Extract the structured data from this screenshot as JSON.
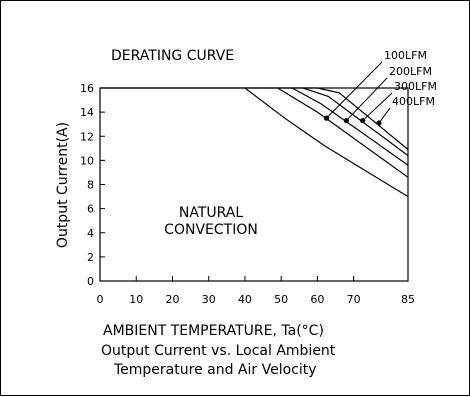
{
  "chart_data": {
    "type": "line",
    "title": "DERATING CURVE",
    "inner_label_lines": [
      "NATURAL",
      "CONVECTION"
    ],
    "xlabel": "AMBIENT TEMPERATURE, Ta(°C)",
    "ylabel": "Output Current(A)",
    "caption_lines": [
      "Output Current vs. Local Ambient",
      "Temperature and Air Velocity"
    ],
    "xlim": [
      0,
      85
    ],
    "ylim": [
      0,
      16
    ],
    "x_ticks": [
      0,
      10,
      20,
      30,
      40,
      50,
      60,
      70,
      85
    ],
    "y_ticks": [
      0,
      2,
      4,
      6,
      8,
      10,
      12,
      14,
      16
    ],
    "grid": false,
    "series": [
      {
        "name": "",
        "x": [
          40,
          51,
          62,
          85
        ],
        "y": [
          16,
          13.5,
          11.2,
          7.0
        ]
      },
      {
        "name": "100LFM",
        "x": [
          49,
          60,
          85
        ],
        "y": [
          16,
          14.0,
          8.6
        ]
      },
      {
        "name": "200LFM",
        "x": [
          53,
          61,
          85
        ],
        "y": [
          16,
          14.7,
          9.6
        ]
      },
      {
        "name": "300LFM",
        "x": [
          56,
          63,
          85
        ],
        "y": [
          16,
          15.3,
          10.4
        ]
      },
      {
        "name": "400LFM",
        "x": [
          60,
          66,
          85
        ],
        "y": [
          16,
          15.6,
          10.9
        ]
      }
    ],
    "markers": [
      {
        "series": "100LFM",
        "x": 62.5,
        "y": 13.5
      },
      {
        "series": "200LFM",
        "x": 68,
        "y": 13.3
      },
      {
        "series": "300LFM",
        "x": 72.5,
        "y": 13.3
      },
      {
        "series": "400LFM",
        "x": 77,
        "y": 13.1
      }
    ]
  }
}
